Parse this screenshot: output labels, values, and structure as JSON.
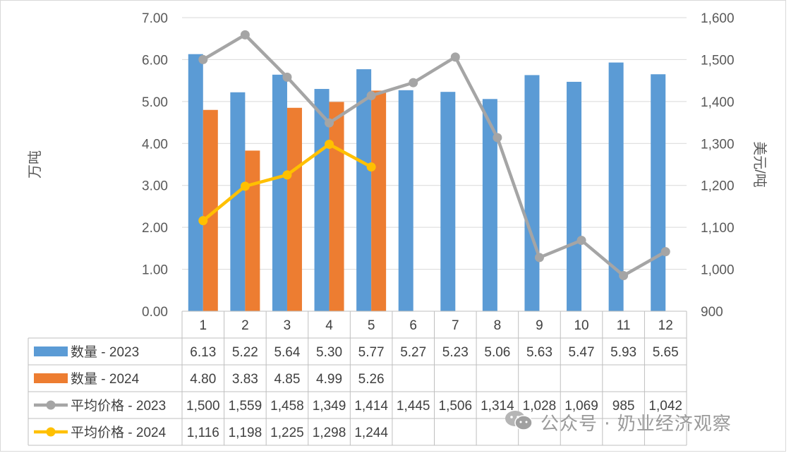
{
  "chart_data": {
    "type": "bar+line",
    "categories": [
      "1",
      "2",
      "3",
      "4",
      "5",
      "6",
      "7",
      "8",
      "9",
      "10",
      "11",
      "12"
    ],
    "y_left": {
      "label": "万吨",
      "ylim": [
        0,
        7
      ],
      "ticks": [
        "0.00",
        "1.00",
        "2.00",
        "3.00",
        "4.00",
        "5.00",
        "6.00",
        "7.00"
      ]
    },
    "y_right": {
      "label": "美元/吨",
      "ylim": [
        900,
        1600
      ],
      "ticks": [
        "900",
        "1,000",
        "1,100",
        "1,200",
        "1,300",
        "1,400",
        "1,500",
        "1,600"
      ]
    },
    "grid": true,
    "legend": "data-table",
    "series": [
      {
        "name": "数量 - 2023",
        "kind": "bar",
        "axis": "left",
        "color": "#5b9bd5",
        "values": [
          6.13,
          5.22,
          5.64,
          5.3,
          5.77,
          5.27,
          5.23,
          5.06,
          5.63,
          5.47,
          5.93,
          5.65
        ],
        "labels": [
          "6.13",
          "5.22",
          "5.64",
          "5.30",
          "5.77",
          "5.27",
          "5.23",
          "5.06",
          "5.63",
          "5.47",
          "5.93",
          "5.65"
        ]
      },
      {
        "name": "数量 - 2024",
        "kind": "bar",
        "axis": "left",
        "color": "#ed7d31",
        "values": [
          4.8,
          3.83,
          4.85,
          4.99,
          5.26,
          null,
          null,
          null,
          null,
          null,
          null,
          null
        ],
        "labels": [
          "4.80",
          "3.83",
          "4.85",
          "4.99",
          "5.26",
          "",
          "",
          "",
          "",
          "",
          "",
          ""
        ]
      },
      {
        "name": "平均价格 - 2023",
        "kind": "line",
        "axis": "right",
        "color": "#a5a5a5",
        "values": [
          1500,
          1559,
          1458,
          1349,
          1414,
          1445,
          1506,
          1314,
          1028,
          1069,
          985,
          1042
        ],
        "labels": [
          "1,500",
          "1,559",
          "1,458",
          "1,349",
          "1,414",
          "1,445",
          "1,506",
          "1,314",
          "1,028",
          "1,069",
          "985",
          "1,042"
        ]
      },
      {
        "name": "平均价格 - 2024",
        "kind": "line",
        "axis": "right",
        "color": "#ffc000",
        "values": [
          1116,
          1198,
          1225,
          1298,
          1244,
          null,
          null,
          null,
          null,
          null,
          null,
          null
        ],
        "labels": [
          "1,116",
          "1,198",
          "1,225",
          "1,298",
          "1,244",
          "",
          "",
          "",
          "",
          "",
          "",
          ""
        ]
      }
    ]
  },
  "watermark": {
    "text": "公众号 · 奶业经济观察",
    "icon": "wechat-icon"
  }
}
